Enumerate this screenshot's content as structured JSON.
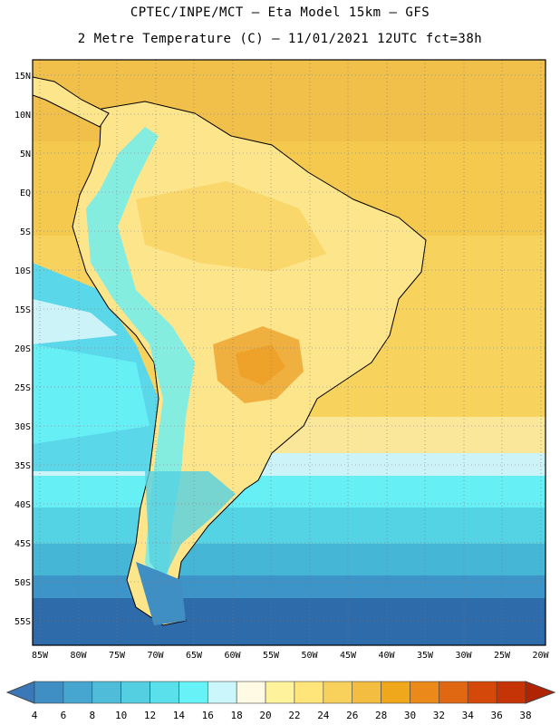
{
  "title_line1": "CPTEC/INPE/MCT –  Eta Model 15km – GFS",
  "title_line2": "2 Metre Temperature (C) – 11/01/2021 12UTC fct=38h",
  "lat_ticks": [
    "15N",
    "10N",
    "5N",
    "EQ",
    "5S",
    "10S",
    "15S",
    "20S",
    "25S",
    "30S",
    "35S",
    "40S",
    "45S",
    "50S",
    "55S"
  ],
  "lon_ticks": [
    "85W",
    "80W",
    "75W",
    "70W",
    "65W",
    "60W",
    "55W",
    "50W",
    "45W",
    "40W",
    "35W",
    "30W",
    "25W",
    "20W"
  ],
  "colorbar": {
    "labels": [
      "4",
      "6",
      "8",
      "10",
      "12",
      "14",
      "16",
      "18",
      "20",
      "22",
      "24",
      "26",
      "28",
      "30",
      "32",
      "34",
      "36",
      "38"
    ],
    "colors": [
      "#3a78b8",
      "#3f8ec4",
      "#46a6cf",
      "#4fbcd9",
      "#54cfe2",
      "#5ae0eb",
      "#66f2f7",
      "#cbf6fb",
      "#fffae4",
      "#fff29c",
      "#ffe57a",
      "#f8d15c",
      "#f2bd40",
      "#efa81c",
      "#eb8a1a",
      "#e06812",
      "#d4480a",
      "#c43406",
      "#b02404"
    ]
  },
  "colors": {
    "ocean_warm": "#f6d468",
    "land": "#fde58c",
    "cool_south": "#5ad8ea",
    "deep_south": "#2f6fae"
  }
}
